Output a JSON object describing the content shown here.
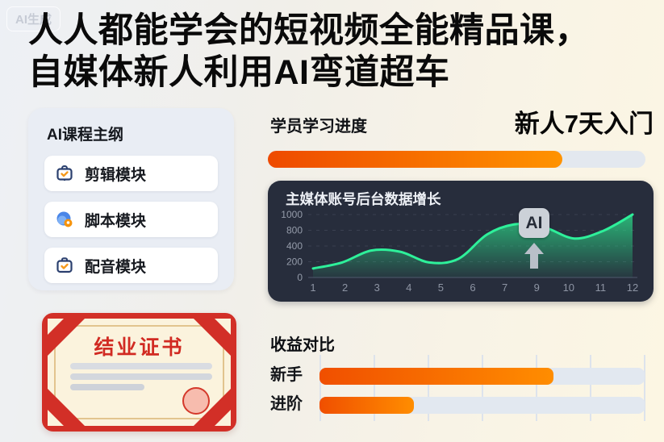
{
  "watermark": "AI生成",
  "headline": {
    "line1": "人人都能学会的短视频全能精品课，",
    "line2": "自媒体新人利用AI弯道超车"
  },
  "sidebar": {
    "header": "AI课程主纲",
    "items": [
      {
        "label": "剪辑模块",
        "icon": "briefcase-check-icon"
      },
      {
        "label": "脚本模块",
        "icon": "globe-badge-icon"
      },
      {
        "label": "配音模块",
        "icon": "toolbox-check-icon"
      }
    ]
  },
  "progress": {
    "label": "学员学习进度",
    "badge": "新人7天入门",
    "percent": 78
  },
  "chart_data": [
    {
      "type": "area",
      "title": "主媒体账号后台数据增长",
      "x_tick_labels": [
        "1",
        "2",
        "3",
        "4",
        "5",
        "6",
        "7",
        "9",
        "10",
        "11",
        "12"
      ],
      "y_tick_labels": [
        "1000",
        "800",
        "400",
        "200",
        "0"
      ],
      "ylim": [
        0,
        1050
      ],
      "values": [
        150,
        250,
        450,
        430,
        250,
        310,
        720,
        890,
        830,
        650,
        780,
        1050
      ],
      "grid": "dashed-horizontal",
      "annotation": {
        "label": "AI",
        "arrow": "up",
        "near_x_label": "9"
      },
      "line_color": "#2ef09a",
      "fill_color": "#2be08a",
      "bg_color": "#272d3c"
    },
    {
      "type": "bar",
      "orientation": "horizontal",
      "title": "收益对比",
      "categories": [
        "新手",
        "进阶"
      ],
      "values": [
        72,
        29
      ],
      "xlim": [
        0,
        100
      ],
      "grid": "vertical",
      "bar_color_start": "#f04f00",
      "bar_color_end": "#ff8d00",
      "track_color": "#e2e8f0"
    }
  ],
  "certificate": {
    "title": "结业证书"
  },
  "colors": {
    "accent_orange": "#ff8a00",
    "accent_orange_deep": "#ee4a00",
    "chart_green": "#2ef09a",
    "chart_bg": "#272d3c",
    "certificate_red": "#d22f27",
    "sidebar_bg": "#e9edf4"
  }
}
